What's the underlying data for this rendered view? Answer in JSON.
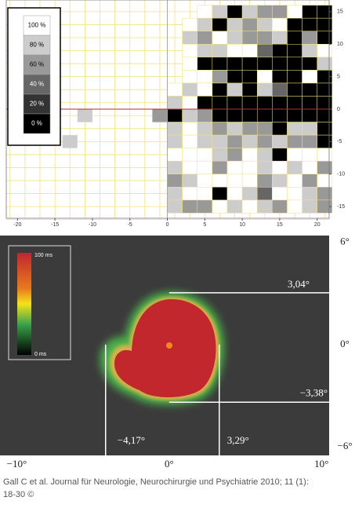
{
  "chart_data": [
    {
      "type": "heatmap",
      "xlim": [
        -21.5,
        21.6
      ],
      "ylim": [
        -16.8,
        16.8
      ],
      "xticks": [
        -20,
        -15,
        -10,
        -5,
        0,
        5,
        10,
        15,
        20
      ],
      "yticks": [
        -15,
        -10,
        -5,
        0,
        5,
        10,
        15
      ],
      "x": [
        1,
        3,
        5,
        7,
        9,
        11,
        13,
        15,
        17,
        19,
        21
      ],
      "y": [
        15,
        13,
        11,
        9,
        7,
        5,
        3,
        1,
        -1,
        -3,
        -5,
        -7,
        -9,
        -11,
        -13,
        -15
      ],
      "values": [
        [
          null,
          null,
          100,
          80,
          0,
          80,
          60,
          60,
          100,
          0,
          0
        ],
        [
          null,
          100,
          80,
          0,
          80,
          60,
          80,
          100,
          0,
          0,
          0
        ],
        [
          null,
          80,
          60,
          100,
          80,
          60,
          60,
          80,
          0,
          60,
          0
        ],
        [
          null,
          100,
          80,
          80,
          100,
          100,
          40,
          0,
          0,
          80,
          100
        ],
        [
          null,
          100,
          0,
          0,
          0,
          0,
          0,
          0,
          0,
          0,
          80
        ],
        [
          null,
          100,
          100,
          60,
          0,
          0,
          100,
          0,
          0,
          100,
          0
        ],
        [
          100,
          80,
          100,
          0,
          80,
          0,
          80,
          40,
          0,
          0,
          0
        ],
        [
          80,
          100,
          0,
          0,
          0,
          0,
          0,
          0,
          0,
          0,
          0
        ],
        [
          0,
          80,
          60,
          0,
          0,
          0,
          0,
          0,
          0,
          0,
          0
        ],
        [
          80,
          100,
          80,
          60,
          80,
          60,
          60,
          0,
          80,
          80,
          0
        ],
        [
          80,
          100,
          80,
          80,
          60,
          80,
          60,
          80,
          60,
          60,
          0
        ],
        [
          100,
          100,
          100,
          80,
          60,
          100,
          80,
          0,
          100,
          100,
          100
        ],
        [
          80,
          100,
          100,
          60,
          100,
          100,
          80,
          100,
          80,
          100,
          60
        ],
        [
          60,
          80,
          100,
          100,
          100,
          100,
          60,
          80,
          100,
          60,
          100
        ],
        [
          80,
          100,
          100,
          0,
          100,
          80,
          40,
          100,
          100,
          80,
          60
        ],
        [
          80,
          60,
          60,
          100,
          80,
          100,
          80,
          60,
          100,
          80,
          60
        ]
      ],
      "extra_cells": [
        {
          "x": -1,
          "y": -1,
          "value": 60
        },
        {
          "x": -11,
          "y": -1,
          "value": 80
        },
        {
          "x": -13,
          "y": -5,
          "value": 80
        }
      ],
      "legend": [
        {
          "value": 100,
          "label": "100 %"
        },
        {
          "value": 80,
          "label": "80 %"
        },
        {
          "value": 60,
          "label": "60 %"
        },
        {
          "value": 40,
          "label": "40 %"
        },
        {
          "value": 20,
          "label": "20 %"
        },
        {
          "value": 0,
          "label": "0 %"
        }
      ]
    },
    {
      "type": "image",
      "xlim": [
        -11.1,
        10.5
      ],
      "ylim": [
        -6.5,
        6.4
      ],
      "xticks": [
        {
          "value": -10,
          "label": "−10°"
        },
        {
          "value": 0,
          "label": "0°"
        },
        {
          "value": 10,
          "label": "10°"
        }
      ],
      "yticks": [
        {
          "value": 6,
          "label": "6°"
        },
        {
          "value": 0,
          "label": "0°"
        },
        {
          "value": -6,
          "label": "−6°"
        }
      ],
      "colorbar": [
        "100 ms",
        "0 ms"
      ],
      "borders": {
        "top": {
          "value": 3.04,
          "label": "3,04°"
        },
        "bottom": {
          "value": -3.38,
          "label": "−3,38°"
        },
        "left": {
          "value": -4.17,
          "label": "−4,17°"
        },
        "right": {
          "value": 3.29,
          "label": "3,29°"
        }
      }
    }
  ],
  "caption": [
    "Gall C et al. Journal für Neurologie, Neurochirurgie und Psychiatrie 2010; 11 (1):",
    "18-30 ©"
  ]
}
